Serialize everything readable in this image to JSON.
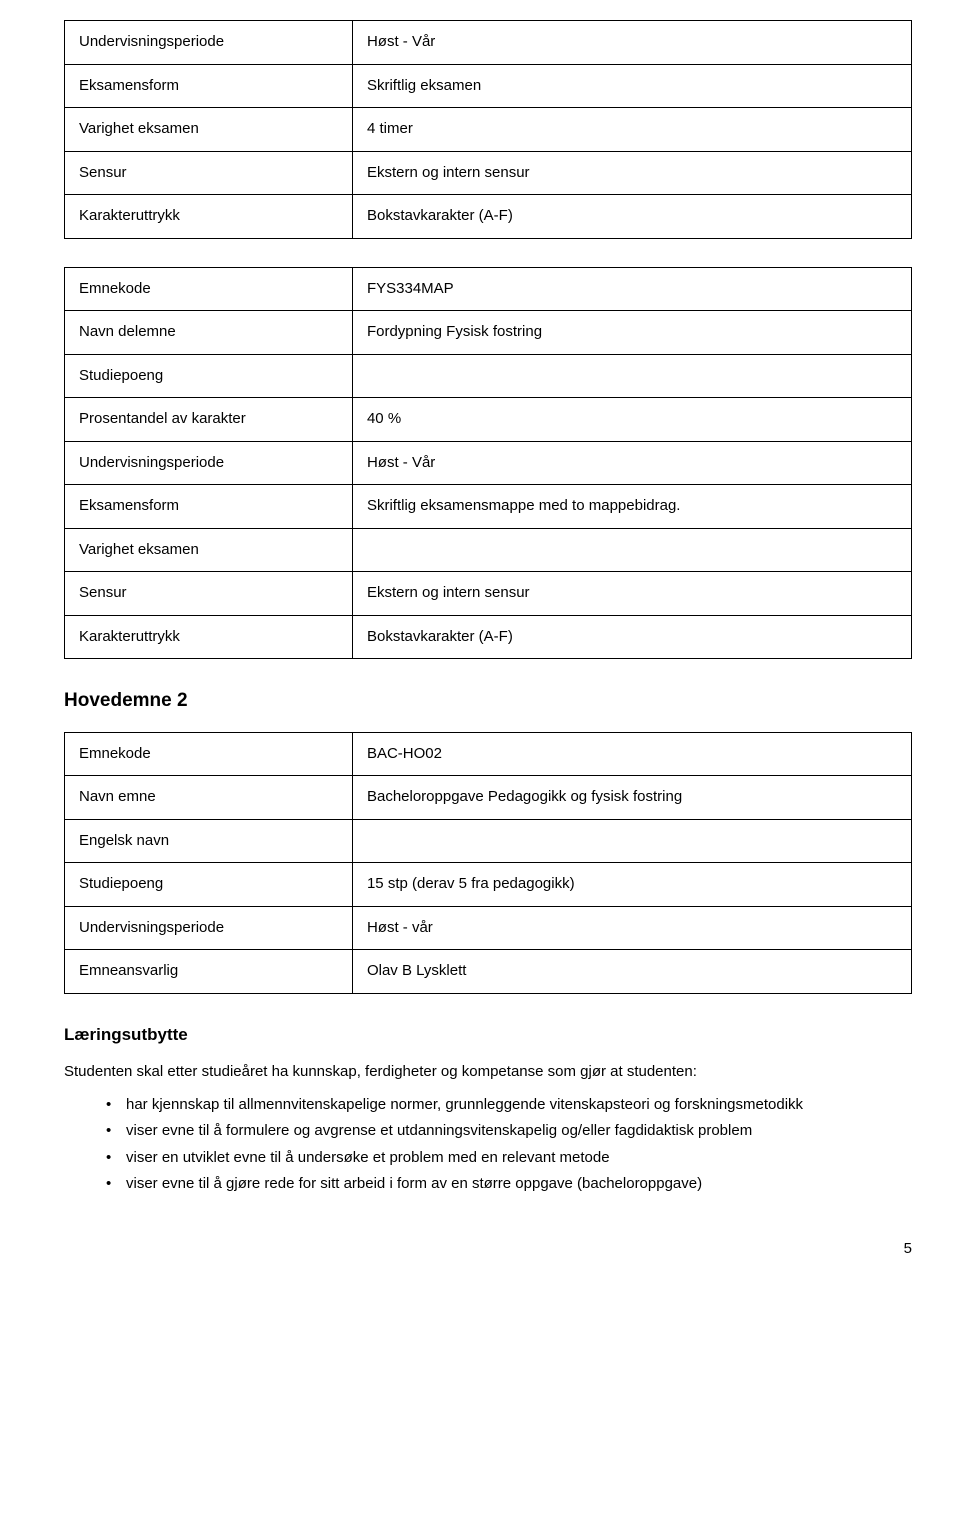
{
  "table1": {
    "rows": [
      {
        "label": "Undervisningsperiode",
        "value": "Høst - Vår"
      },
      {
        "label": "Eksamensform",
        "value": "Skriftlig eksamen"
      },
      {
        "label": "Varighet eksamen",
        "value": "4 timer"
      },
      {
        "label": "Sensur",
        "value": "Ekstern og intern sensur"
      },
      {
        "label": "Karakteruttrykk",
        "value": "Bokstavkarakter (A-F)"
      }
    ]
  },
  "table2": {
    "rows": [
      {
        "label": "Emnekode",
        "value": "FYS334MAP"
      },
      {
        "label": "Navn delemne",
        "value": "Fordypning Fysisk fostring"
      },
      {
        "label": "Studiepoeng",
        "value": ""
      },
      {
        "label": "Prosentandel av karakter",
        "value": "40 %"
      },
      {
        "label": "Undervisningsperiode",
        "value": "Høst - Vår"
      },
      {
        "label": "Eksamensform",
        "value": "Skriftlig eksamensmappe med to mappebidrag."
      },
      {
        "label": "Varighet eksamen",
        "value": ""
      },
      {
        "label": "Sensur",
        "value": "Ekstern og intern sensur"
      },
      {
        "label": "Karakteruttrykk",
        "value": "Bokstavkarakter (A-F)"
      }
    ]
  },
  "heading2": "Hovedemne 2",
  "table3": {
    "rows": [
      {
        "label": "Emnekode",
        "value": "BAC-HO02"
      },
      {
        "label": "Navn emne",
        "value": "Bacheloroppgave Pedagogikk og fysisk fostring"
      },
      {
        "label": "Engelsk navn",
        "value": ""
      },
      {
        "label": "Studiepoeng",
        "value": "15 stp (derav 5 fra pedagogikk)"
      },
      {
        "label": "Undervisningsperiode",
        "value": "Høst - vår"
      },
      {
        "label": "Emneansvarlig",
        "value": "Olav B Lysklett"
      }
    ]
  },
  "heading3": "Læringsutbytte",
  "intro": "Studenten skal etter studieåret ha kunnskap, ferdigheter og kompetanse som gjør at studenten:",
  "bullets": [
    "har kjennskap til allmennvitenskapelige normer, grunnleggende vitenskapsteori og forskningsmetodikk",
    "viser evne til å formulere og avgrense et utdanningsvitenskapelig og/eller fagdidaktisk problem",
    "viser en utviklet evne til å undersøke et problem med en relevant metode",
    "viser evne til å gjøre rede for sitt arbeid i form av en større oppgave (bacheloroppgave)"
  ],
  "pageNumber": "5"
}
